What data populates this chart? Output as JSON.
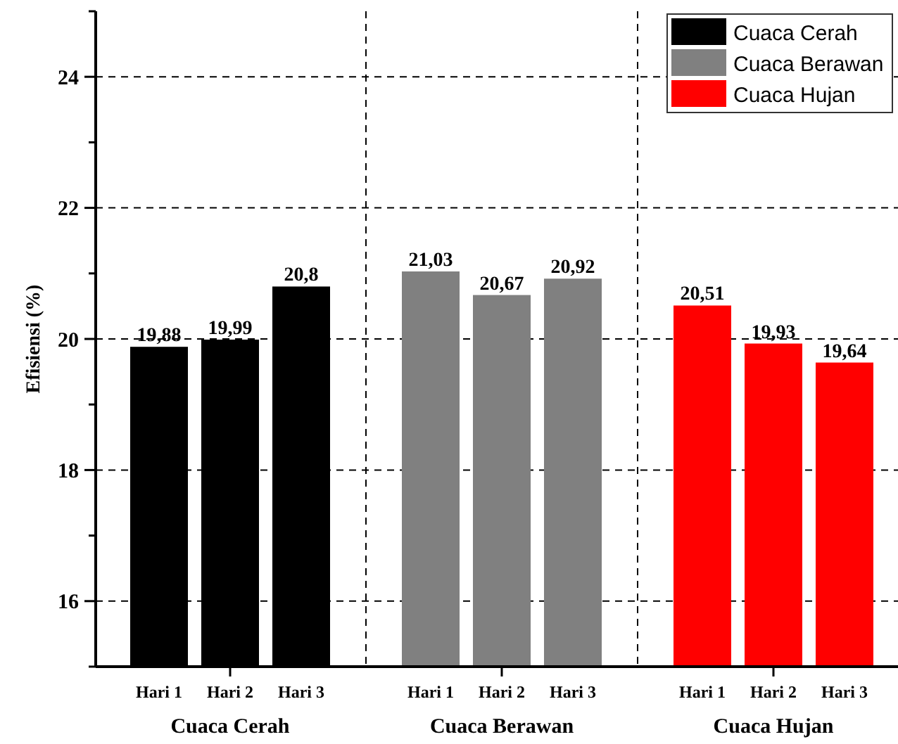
{
  "chart_data": {
    "type": "bar",
    "ylabel": "Efisiensi (%)",
    "categories": [
      "Hari 1",
      "Hari 2",
      "Hari 3",
      "Hari 1",
      "Hari 2",
      "Hari 3",
      "Hari 1",
      "Hari 2",
      "Hari 3"
    ],
    "series": [
      {
        "name": "Cuaca Cerah",
        "color": "#000000",
        "values": [
          19.88,
          19.99,
          20.8,
          null,
          null,
          null,
          null,
          null,
          null
        ],
        "value_labels": [
          "19,88",
          "19,99",
          "20,8",
          null,
          null,
          null,
          null,
          null,
          null
        ]
      },
      {
        "name": "Cuaca Berawan",
        "color": "#808080",
        "values": [
          null,
          null,
          null,
          21.03,
          20.67,
          20.92,
          null,
          null,
          null
        ],
        "value_labels": [
          null,
          null,
          null,
          "21,03",
          "20,67",
          "20,92",
          null,
          null,
          null
        ]
      },
      {
        "name": "Cuaca Hujan",
        "color": "#ff0000",
        "values": [
          null,
          null,
          null,
          null,
          null,
          null,
          20.51,
          19.93,
          19.64
        ],
        "value_labels": [
          null,
          null,
          null,
          null,
          null,
          null,
          "20,51",
          "19,93",
          "19,64"
        ]
      }
    ],
    "ylim": [
      15,
      25
    ],
    "yticks": [
      {
        "value": 15,
        "label": null
      },
      16,
      {
        "value": 17,
        "label": null
      },
      18,
      {
        "value": 19,
        "label": null
      },
      20,
      {
        "value": 21,
        "label": null
      },
      22,
      {
        "value": 23,
        "label": null
      },
      24,
      {
        "value": 25,
        "label": null
      }
    ],
    "grid": true,
    "legend": "top right"
  }
}
